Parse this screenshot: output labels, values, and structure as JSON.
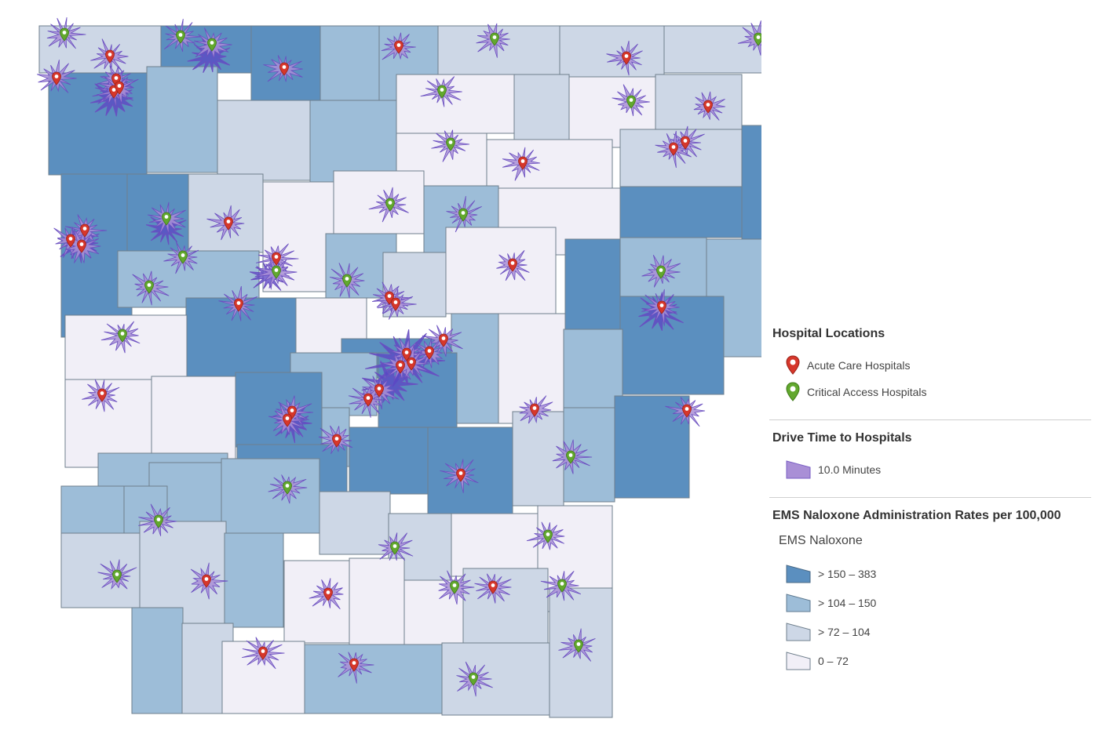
{
  "legend": {
    "hospitals": {
      "title": "Hospital Locations",
      "items": [
        {
          "label": "Acute Care Hospitals",
          "color": "#d6372b"
        },
        {
          "label": "Critical Access Hospitals",
          "color": "#62a82e"
        }
      ]
    },
    "drive": {
      "title": "Drive Time to Hospitals",
      "items": [
        {
          "label": "10.0 Minutes",
          "color": "#a98fd6"
        }
      ]
    },
    "ems": {
      "title": "EMS Naloxone Administration Rates per 100,000",
      "field": "EMS Naloxone",
      "classes": [
        {
          "label": "> 150 – 383",
          "color": "#5b8fbf"
        },
        {
          "label": "> 104 – 150",
          "color": "#9dbdd8"
        },
        {
          "label": "> 72 – 104",
          "color": "#cdd7e6"
        },
        {
          "label": "0 – 72",
          "color": "#f1eff7"
        }
      ]
    }
  },
  "colors": {
    "county_border": "#6f7f8c",
    "drive_fill": "#a98fd6",
    "drive_stroke": "#6a4fc0",
    "dense_drive": "#5a45c4"
  }
}
